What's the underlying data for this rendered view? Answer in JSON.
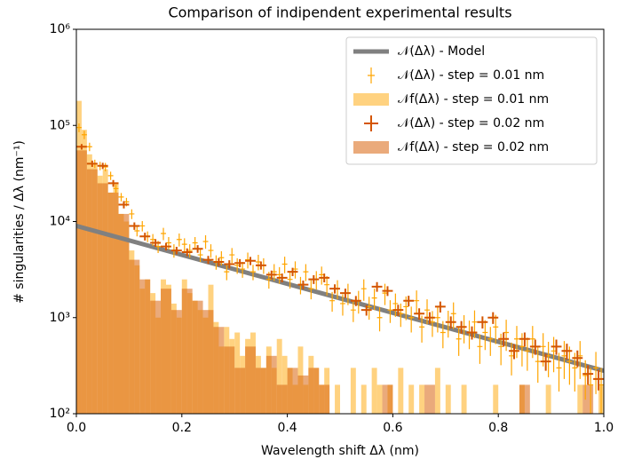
{
  "chart_data": {
    "type": "histogram",
    "title": "Comparison of indipendent experimental results",
    "x_label": "Wavelength shift Δλ (nm)",
    "y_label": "# singularities / Δλ (nm⁻¹)",
    "xlim": [
      0,
      1
    ],
    "xticks": [
      {
        "value": 0,
        "label": "0.0"
      },
      {
        "value": 0.2,
        "label": "0.2"
      },
      {
        "value": 0.4,
        "label": "0.4"
      },
      {
        "value": 0.6,
        "label": "0.6"
      },
      {
        "value": 0.8,
        "label": "0.8"
      },
      {
        "value": 1,
        "label": "1.0"
      }
    ],
    "ylim": [
      100,
      1000000
    ],
    "y_log": true,
    "yticks": [
      {
        "value": 100,
        "label": "10²"
      },
      {
        "value": 1000,
        "label": "10³"
      },
      {
        "value": 10000,
        "label": "10⁴"
      },
      {
        "value": 100000,
        "label": "10⁵"
      },
      {
        "value": 1000000,
        "label": "10⁶"
      }
    ],
    "legend": "upper right",
    "series": [
      {
        "name": "𝒩(Δλ) - Model",
        "type": "line",
        "color": "#808080",
        "x": [
          0,
          1
        ],
        "values": [
          9000,
          280
        ]
      },
      {
        "name": "𝒩(Δλ) - step = 0.01 nm",
        "type": "errorbar",
        "color": "#ffa500",
        "xerr": 0.005,
        "x": [
          0.005,
          0.015,
          0.025,
          0.035,
          0.045,
          0.055,
          0.065,
          0.075,
          0.085,
          0.095,
          0.105,
          0.115,
          0.125,
          0.135,
          0.145,
          0.155,
          0.165,
          0.175,
          0.185,
          0.195,
          0.205,
          0.215,
          0.225,
          0.235,
          0.245,
          0.255,
          0.265,
          0.275,
          0.285,
          0.295,
          0.305,
          0.315,
          0.325,
          0.335,
          0.345,
          0.355,
          0.365,
          0.375,
          0.385,
          0.395,
          0.405,
          0.415,
          0.425,
          0.435,
          0.445,
          0.455,
          0.465,
          0.475,
          0.485,
          0.495,
          0.505,
          0.515,
          0.525,
          0.535,
          0.545,
          0.555,
          0.565,
          0.575,
          0.585,
          0.595,
          0.605,
          0.615,
          0.625,
          0.635,
          0.645,
          0.655,
          0.665,
          0.675,
          0.685,
          0.695,
          0.705,
          0.715,
          0.725,
          0.735,
          0.745,
          0.755,
          0.765,
          0.775,
          0.785,
          0.795,
          0.805,
          0.815,
          0.825,
          0.835,
          0.845,
          0.855,
          0.865,
          0.875,
          0.885,
          0.895,
          0.905,
          0.915,
          0.925,
          0.935,
          0.945,
          0.955,
          0.965,
          0.975,
          0.985,
          0.995
        ],
        "values": [
          95000,
          80000,
          60000,
          40000,
          38000,
          37000,
          30000,
          22000,
          18000,
          16000,
          12000,
          8000,
          9000,
          7000,
          6500,
          5500,
          7500,
          6000,
          5000,
          6500,
          5800,
          5000,
          6000,
          4500,
          6200,
          5000,
          3800,
          4200,
          3000,
          4500,
          3500,
          3200,
          4000,
          3000,
          3800,
          3500,
          2500,
          3000,
          2800,
          3600,
          2500,
          3200,
          2200,
          3000,
          2000,
          2500,
          2800,
          2200,
          1500,
          2000,
          1400,
          1800,
          1200,
          1500,
          2000,
          1300,
          1600,
          1000,
          1800,
          1200,
          1400,
          1100,
          1300,
          1000,
          1500,
          800,
          1200,
          900,
          1000,
          700,
          900,
          1100,
          600,
          800,
          700,
          900,
          500,
          700,
          600,
          800,
          500,
          700,
          400,
          600,
          500,
          450,
          600,
          350,
          500,
          400,
          450,
          300,
          400,
          350,
          300,
          400,
          250,
          200,
          300,
          200
        ],
        "errors": [
          10000,
          8000,
          6000,
          4000,
          3800,
          3700,
          3000,
          2200,
          1800,
          1600,
          1400,
          1000,
          1100,
          900,
          900,
          800,
          1100,
          900,
          800,
          1000,
          900,
          800,
          900,
          700,
          1000,
          800,
          650,
          700,
          550,
          800,
          650,
          600,
          750,
          550,
          700,
          650,
          500,
          600,
          550,
          700,
          500,
          650,
          450,
          600,
          450,
          550,
          600,
          500,
          350,
          450,
          350,
          450,
          300,
          400,
          500,
          350,
          400,
          280,
          450,
          320,
          380,
          300,
          360,
          300,
          420,
          250,
          350,
          270,
          300,
          220,
          280,
          340,
          200,
          260,
          230,
          290,
          170,
          240,
          200,
          270,
          180,
          250,
          150,
          220,
          190,
          170,
          220,
          140,
          190,
          160,
          180,
          130,
          170,
          150,
          130,
          170,
          110,
          100,
          140,
          100
        ]
      },
      {
        "name": "𝒩f(Δλ) - step = 0.01 nm",
        "type": "histogram",
        "color": "#ffd280",
        "opacity": 1,
        "bins": [
          0,
          0.01,
          0.02,
          0.03,
          0.04,
          0.05,
          0.06,
          0.07,
          0.08,
          0.09,
          0.1,
          0.11,
          0.12,
          0.13,
          0.14,
          0.15,
          0.16,
          0.17,
          0.18,
          0.19,
          0.2,
          0.21,
          0.22,
          0.23,
          0.24,
          0.25,
          0.26,
          0.27,
          0.28,
          0.29,
          0.3,
          0.31,
          0.32,
          0.33,
          0.34,
          0.35,
          0.36,
          0.37,
          0.38,
          0.39,
          0.4,
          0.41,
          0.42,
          0.43,
          0.44,
          0.45,
          0.46,
          0.47,
          0.48,
          0.49,
          0.5,
          0.51,
          0.52,
          0.53,
          0.54,
          0.55,
          0.56,
          0.57,
          0.58,
          0.59,
          0.6,
          0.61,
          0.62,
          0.63,
          0.64,
          0.65,
          0.66,
          0.67,
          0.68,
          0.69,
          0.7,
          0.71,
          0.72,
          0.73,
          0.74,
          0.75,
          0.76,
          0.77,
          0.78,
          0.79,
          0.8,
          0.81,
          0.82,
          0.83,
          0.84,
          0.85,
          0.86,
          0.87,
          0.88,
          0.89,
          0.9,
          0.91,
          0.92,
          0.93,
          0.94,
          0.95,
          0.96,
          0.97,
          0.98,
          0.99,
          1
        ],
        "values": [
          180000,
          90000,
          50000,
          40000,
          30000,
          35000,
          20000,
          25000,
          12000,
          10000,
          5000,
          3500,
          2000,
          2500,
          1800,
          1000,
          2500,
          2200,
          1400,
          1000,
          2500,
          1800,
          1500,
          1200,
          1000,
          2200,
          900,
          500,
          800,
          600,
          700,
          400,
          600,
          700,
          400,
          300,
          500,
          300,
          600,
          400,
          300,
          200,
          500,
          200,
          400,
          300,
          200,
          300,
          0,
          200,
          0,
          0,
          300,
          0,
          200,
          0,
          300,
          200,
          0,
          200,
          0,
          300,
          0,
          200,
          0,
          200,
          0,
          0,
          300,
          0,
          200,
          0,
          0,
          200,
          0,
          0,
          0,
          0,
          0,
          200,
          0,
          0,
          0,
          0,
          200,
          0,
          0,
          0,
          0,
          200,
          0,
          0,
          0,
          0,
          0,
          200,
          0,
          0,
          0,
          200
        ]
      },
      {
        "name": "𝒩(Δλ) - step = 0.02 nm",
        "type": "errorbar",
        "color": "#d45500",
        "xerr": 0.01,
        "x": [
          0.01,
          0.03,
          0.05,
          0.07,
          0.09,
          0.11,
          0.13,
          0.15,
          0.17,
          0.19,
          0.21,
          0.23,
          0.25,
          0.27,
          0.29,
          0.31,
          0.33,
          0.35,
          0.37,
          0.39,
          0.41,
          0.43,
          0.45,
          0.47,
          0.49,
          0.51,
          0.53,
          0.55,
          0.57,
          0.59,
          0.61,
          0.63,
          0.65,
          0.67,
          0.69,
          0.71,
          0.73,
          0.75,
          0.77,
          0.79,
          0.81,
          0.83,
          0.85,
          0.87,
          0.89,
          0.91,
          0.93,
          0.95,
          0.97,
          0.99
        ],
        "values": [
          60000,
          40000,
          38000,
          25000,
          15000,
          9000,
          7000,
          6000,
          5500,
          5000,
          4800,
          5200,
          4000,
          3800,
          3600,
          3700,
          3900,
          3500,
          2800,
          2600,
          3000,
          2200,
          2500,
          2600,
          2000,
          1800,
          1500,
          1200,
          2100,
          1900,
          1200,
          1500,
          1100,
          1000,
          1300,
          900,
          800,
          700,
          900,
          1000,
          600,
          450,
          600,
          500,
          350,
          500,
          450,
          380,
          260,
          230
        ],
        "errors": [
          4000,
          3000,
          2800,
          2000,
          1300,
          800,
          650,
          550,
          500,
          450,
          450,
          480,
          380,
          360,
          350,
          360,
          380,
          340,
          290,
          270,
          300,
          230,
          260,
          270,
          220,
          200,
          180,
          150,
          240,
          220,
          160,
          190,
          150,
          140,
          170,
          130,
          120,
          110,
          130,
          140,
          100,
          80,
          100,
          90,
          70,
          90,
          85,
          75,
          60,
          55
        ]
      },
      {
        "name": "𝒩f(Δλ) - step = 0.02 nm",
        "type": "histogram",
        "color": "#d9640f",
        "opacity": 0.55,
        "bins": [
          0,
          0.02,
          0.04,
          0.06,
          0.08,
          0.1,
          0.12,
          0.14,
          0.16,
          0.18,
          0.2,
          0.22,
          0.24,
          0.26,
          0.28,
          0.3,
          0.32,
          0.34,
          0.36,
          0.38,
          0.4,
          0.42,
          0.44,
          0.46,
          0.48,
          0.5,
          0.52,
          0.54,
          0.56,
          0.58,
          0.6,
          0.62,
          0.64,
          0.66,
          0.68,
          0.7,
          0.72,
          0.74,
          0.76,
          0.78,
          0.8,
          0.82,
          0.84,
          0.86,
          0.88,
          0.9,
          0.92,
          0.94,
          0.96,
          0.98,
          1
        ],
        "values": [
          55000,
          35000,
          25000,
          20000,
          12000,
          4000,
          2500,
          1500,
          2000,
          1200,
          2000,
          1500,
          1200,
          800,
          500,
          300,
          500,
          300,
          400,
          200,
          300,
          250,
          300,
          200,
          0,
          0,
          0,
          0,
          0,
          200,
          0,
          0,
          0,
          200,
          0,
          0,
          0,
          0,
          0,
          0,
          0,
          0,
          200,
          0,
          0,
          0,
          0,
          0,
          200,
          0
        ]
      }
    ]
  }
}
